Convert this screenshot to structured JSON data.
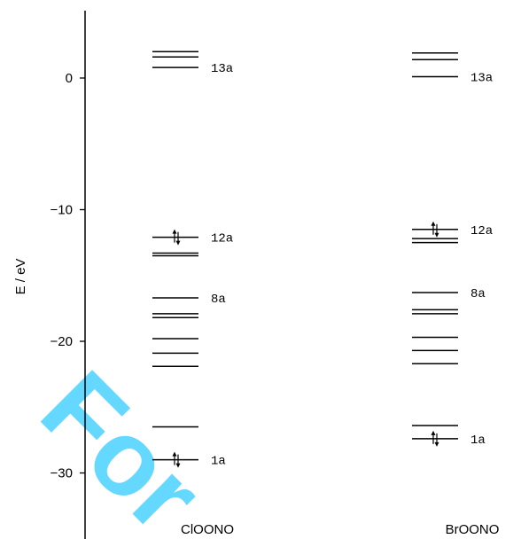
{
  "chart_data": {
    "type": "energy-level-diagram",
    "ylabel": "E / eV",
    "ylim": [
      -34.5,
      5
    ],
    "yticks": [
      0,
      -10,
      -20,
      -30
    ],
    "ytick_labels": [
      "0",
      "−10",
      "−20",
      "−30"
    ],
    "series": [
      {
        "name": "ClOONO",
        "levels": [
          2.0,
          1.6,
          0.8,
          -12.1,
          -13.3,
          -13.5,
          -16.7,
          -17.9,
          -18.2,
          -19.8,
          -20.9,
          -21.9,
          -26.5,
          -29.0
        ],
        "occupied_arrows": [
          -12.1,
          -29.0
        ],
        "labels": [
          {
            "text": "13a",
            "value": 0.8
          },
          {
            "text": "12a",
            "value": -12.1
          },
          {
            "text": "8a",
            "value": -16.7
          },
          {
            "text": "1a",
            "value": -29.0
          }
        ]
      },
      {
        "name": "BrOONO",
        "levels": [
          1.9,
          1.4,
          0.1,
          -11.5,
          -12.2,
          -12.5,
          -16.3,
          -17.6,
          -17.9,
          -19.7,
          -20.7,
          -21.7,
          -26.4,
          -27.4
        ],
        "occupied_arrows": [
          -11.5,
          -27.4
        ],
        "labels": [
          {
            "text": "13a",
            "value": 0.1
          },
          {
            "text": "12a",
            "value": -11.5
          },
          {
            "text": "8a",
            "value": -16.3
          },
          {
            "text": "1a",
            "value": -27.4
          }
        ]
      }
    ],
    "watermark": "For"
  },
  "colors": {
    "line": "#000000",
    "watermark": "#00bfff"
  }
}
